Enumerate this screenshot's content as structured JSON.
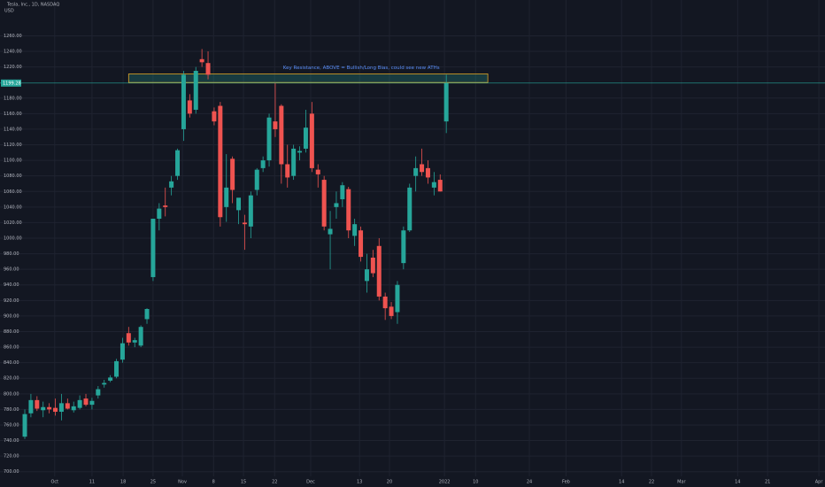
{
  "chart_data": {
    "type": "candlestick",
    "title": "Tesla, Inc., 1D, NASDAQ",
    "currency": "USD",
    "categories": [
      null,
      null,
      null,
      null,
      null,
      null,
      null,
      null,
      null,
      null,
      null,
      null,
      null,
      null,
      null,
      null,
      null,
      null,
      null,
      null,
      null,
      null,
      null,
      null,
      null,
      null,
      null,
      null,
      null,
      null,
      null,
      null,
      null,
      null,
      null,
      null,
      null,
      null,
      null,
      null,
      null,
      null,
      null,
      null,
      null,
      null,
      null,
      null,
      null,
      null,
      null,
      null,
      null,
      null,
      null,
      null,
      null,
      null,
      null,
      null,
      null,
      null,
      null,
      null,
      null,
      null,
      null,
      null,
      null,
      null
    ],
    "open": [
      745,
      775,
      792,
      779,
      783,
      782,
      777,
      788,
      779,
      782,
      794,
      786,
      798,
      812,
      817,
      822,
      844,
      878,
      866,
      862,
      896,
      950,
      1025,
      1042,
      1065,
      1080,
      1140,
      1177,
      1165,
      1230,
      1225,
      1163,
      1170,
      1040,
      1102,
      1036,
      1020,
      1015,
      1062,
      1090,
      1100,
      1150,
      1170,
      1095,
      1080,
      1110,
      1115,
      1160,
      1088,
      1075,
      1005,
      1040,
      1050,
      1063,
      1003,
      1010,
      945,
      975,
      990,
      925,
      912,
      905,
      968,
      1010,
      1080,
      1095,
      1090,
      1065,
      1075,
      1150
    ],
    "high": [
      780,
      800,
      797,
      790,
      788,
      794,
      800,
      794,
      790,
      798,
      800,
      795,
      810,
      818,
      824,
      845,
      872,
      886,
      872,
      888,
      910,
      1025,
      1045,
      1065,
      1080,
      1115,
      1215,
      1185,
      1220,
      1243,
      1240,
      1168,
      1175,
      1108,
      1105,
      1051,
      1030,
      1060,
      1090,
      1105,
      1160,
      1200,
      1172,
      1120,
      1120,
      1118,
      1165,
      1175,
      1095,
      1080,
      1035,
      1060,
      1072,
      1066,
      1025,
      1015,
      980,
      985,
      1000,
      930,
      918,
      945,
      1015,
      1070,
      1105,
      1115,
      1100,
      1085,
      1082,
      1210
    ],
    "low": [
      742,
      770,
      778,
      770,
      775,
      772,
      766,
      780,
      776,
      780,
      784,
      780,
      794,
      808,
      815,
      820,
      840,
      862,
      860,
      860,
      890,
      945,
      1010,
      1028,
      1055,
      1075,
      1125,
      1155,
      1160,
      1220,
      1204,
      1145,
      1015,
      1021,
      1045,
      1018,
      985,
      1000,
      1055,
      1085,
      1092,
      1130,
      1070,
      1065,
      1075,
      1100,
      1110,
      1085,
      1065,
      1010,
      960,
      1025,
      1040,
      1000,
      990,
      970,
      930,
      950,
      920,
      895,
      896,
      890,
      960,
      1008,
      1060,
      1080,
      1070,
      1055,
      1060,
      1135
    ],
    "close": [
      774,
      792,
      781,
      783,
      780,
      777,
      788,
      781,
      784,
      792,
      786,
      791,
      806,
      814,
      821,
      842,
      865,
      866,
      869,
      886,
      909,
      1025,
      1038,
      1040,
      1073,
      1113,
      1210,
      1160,
      1215,
      1226,
      1210,
      1150,
      1027,
      1065,
      1062,
      1052,
      1018,
      1055,
      1088,
      1100,
      1155,
      1140,
      1095,
      1078,
      1115,
      1112,
      1142,
      1090,
      1082,
      1015,
      1012,
      1045,
      1068,
      1010,
      1018,
      976,
      960,
      955,
      925,
      910,
      900,
      940,
      1010,
      1065,
      1090,
      1085,
      1078,
      1072,
      1060,
      1199.28
    ],
    "up_color": "#26a69a",
    "down_color": "#ef5350",
    "xlim": [
      -4.06,
      131
    ],
    "ylim": [
      694,
      1306
    ],
    "yticks": [
      {
        "value": 700,
        "label": "700.00"
      },
      {
        "value": 720,
        "label": "720.00"
      },
      {
        "value": 740,
        "label": "740.00"
      },
      {
        "value": 760,
        "label": "760.00"
      },
      {
        "value": 780,
        "label": "780.00"
      },
      {
        "value": 800,
        "label": "800.00"
      },
      {
        "value": 820,
        "label": "820.00"
      },
      {
        "value": 840,
        "label": "840.00"
      },
      {
        "value": 860,
        "label": "860.00"
      },
      {
        "value": 880,
        "label": "880.00"
      },
      {
        "value": 900,
        "label": "900.00"
      },
      {
        "value": 920,
        "label": "920.00"
      },
      {
        "value": 940,
        "label": "940.00"
      },
      {
        "value": 960,
        "label": "960.00"
      },
      {
        "value": 980,
        "label": "980.00"
      },
      {
        "value": 1000,
        "label": "1000.00"
      },
      {
        "value": 1020,
        "label": "1020.00"
      },
      {
        "value": 1040,
        "label": "1040.00"
      },
      {
        "value": 1060,
        "label": "1060.00"
      },
      {
        "value": 1080,
        "label": "1080.00"
      },
      {
        "value": 1100,
        "label": "1100.00"
      },
      {
        "value": 1120,
        "label": "1120.00"
      },
      {
        "value": 1140,
        "label": "1140.00"
      },
      {
        "value": 1160,
        "label": "1160.00"
      },
      {
        "value": 1180,
        "label": "1180.00"
      },
      {
        "value": 1220,
        "label": "1220.00"
      },
      {
        "value": 1240,
        "label": "1240.00"
      },
      {
        "value": 1260,
        "label": "1260.00"
      }
    ],
    "xticks": [
      {
        "value": 4.9,
        "label": "Oct"
      },
      {
        "value": 11.0,
        "label": "11"
      },
      {
        "value": 16.1,
        "label": "18"
      },
      {
        "value": 21.0,
        "label": "25"
      },
      {
        "value": 25.8,
        "label": "Nov"
      },
      {
        "value": 30.9,
        "label": "8"
      },
      {
        "value": 35.8,
        "label": "15"
      },
      {
        "value": 40.9,
        "label": "22"
      },
      {
        "value": 46.8,
        "label": "Dec"
      },
      {
        "value": 54.8,
        "label": "13"
      },
      {
        "value": 59.7,
        "label": "20"
      },
      {
        "value": 68.7,
        "label": "2022"
      },
      {
        "value": 73.8,
        "label": "10"
      },
      {
        "value": 82.6,
        "label": "24"
      },
      {
        "value": 88.6,
        "label": "Feb"
      },
      {
        "value": 97.7,
        "label": "14"
      },
      {
        "value": 102.6,
        "label": "22"
      },
      {
        "value": 107.5,
        "label": "Mar"
      },
      {
        "value": 116.7,
        "label": "14"
      },
      {
        "value": 121.6,
        "label": "21"
      },
      {
        "value": 130.0,
        "label": "Apr"
      }
    ],
    "grid": true,
    "last_price": {
      "value": 1199.28,
      "label": "1199.28"
    },
    "annotation": {
      "text": "Key Resistance, ABOVE = Bullish/Long Bias, could see new ATHs",
      "zone": [
        1200,
        1211
      ],
      "x_range": [
        17.0,
        75.8
      ]
    }
  }
}
